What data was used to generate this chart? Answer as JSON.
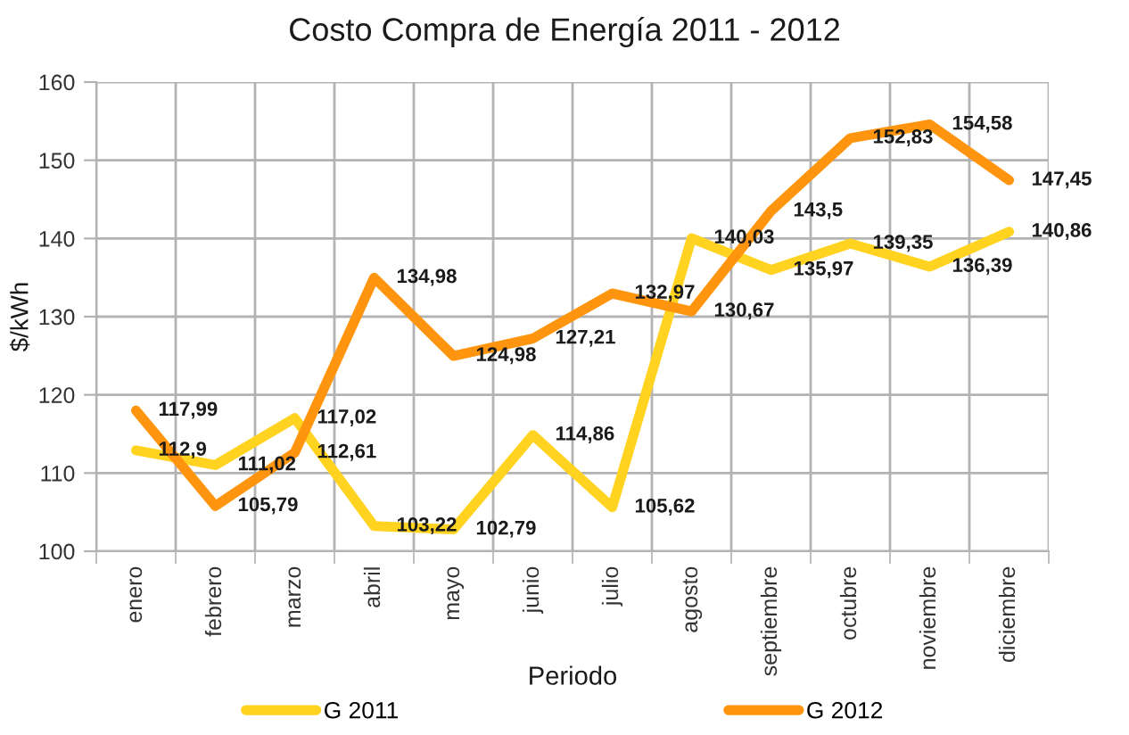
{
  "chart_data": {
    "type": "line",
    "title": "Costo Compra de Energía 2011 - 2012",
    "xlabel": "Periodo",
    "ylabel": "$/kWh",
    "categories": [
      "enero",
      "febrero",
      "marzo",
      "abril",
      "mayo",
      "junio",
      "julio",
      "agosto",
      "septiembre",
      "octubre",
      "noviembre",
      "diciembre"
    ],
    "series": [
      {
        "name": "G 2011",
        "color": "#ffd320",
        "values": [
          112.9,
          111.02,
          117.02,
          103.22,
          102.79,
          114.86,
          105.62,
          140.03,
          135.97,
          139.35,
          136.39,
          140.86
        ],
        "value_labels": [
          "112,9",
          "111,02",
          "117,02",
          "103,22",
          "102,79",
          "114,86",
          "105,62",
          "140,03",
          "135,97",
          "139,35",
          "136,39",
          "140,86"
        ]
      },
      {
        "name": "G 2012",
        "color": "#ff950e",
        "values": [
          117.99,
          105.79,
          112.61,
          134.98,
          124.98,
          127.21,
          132.97,
          130.67,
          143.5,
          152.83,
          154.58,
          147.45
        ],
        "value_labels": [
          "117,99",
          "105,79",
          "112,61",
          "134,98",
          "124,98",
          "127,21",
          "132,97",
          "130,67",
          "143,5",
          "152,83",
          "154,58",
          "147,45"
        ]
      }
    ],
    "ylim": [
      100,
      160
    ],
    "yticks": [
      100,
      110,
      120,
      130,
      140,
      150,
      160
    ],
    "grid": true,
    "legend": "bottom",
    "marker": "none",
    "line_style": "solid"
  }
}
